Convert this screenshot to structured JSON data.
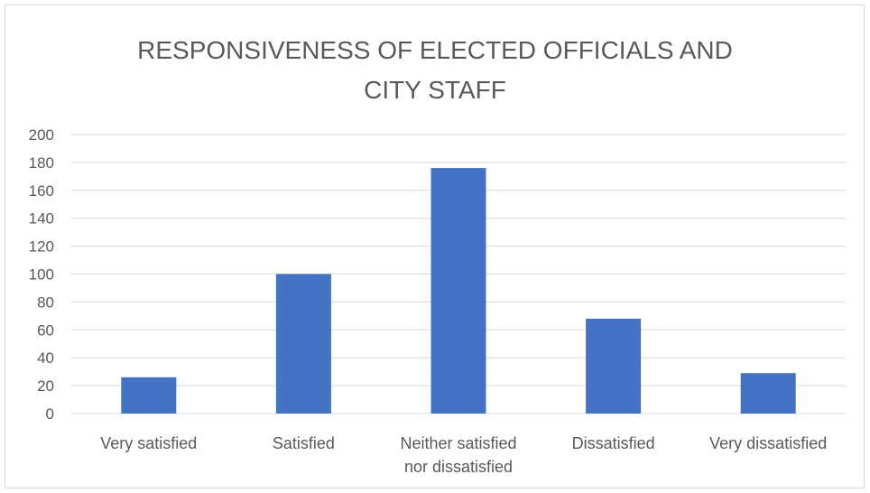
{
  "chart_data": {
    "type": "bar",
    "title": "RESPONSIVENESS OF ELECTED OFFICIALS AND CITY STAFF",
    "title_lines": [
      "RESPONSIVENESS OF ELECTED OFFICIALS AND",
      "CITY STAFF"
    ],
    "categories": [
      "Very satisfied",
      "Satisfied",
      "Neither satisfied nor dissatisfied",
      "Dissatisfied",
      "Very dissatisfied"
    ],
    "category_label_lines": [
      [
        "Very satisfied"
      ],
      [
        "Satisfied"
      ],
      [
        "Neither satisfied",
        "nor dissatisfied"
      ],
      [
        "Dissatisfied"
      ],
      [
        "Very dissatisfied"
      ]
    ],
    "values": [
      26,
      100,
      176,
      68,
      29
    ],
    "ylim": [
      0,
      200
    ],
    "yticks": [
      0,
      20,
      40,
      60,
      80,
      100,
      120,
      140,
      160,
      180,
      200
    ],
    "xlabel": "",
    "ylabel": "",
    "grid": true,
    "legend": "none",
    "colors": {
      "bar": "#4472c4",
      "grid": "#d9d9d9",
      "text": "#595959"
    }
  }
}
